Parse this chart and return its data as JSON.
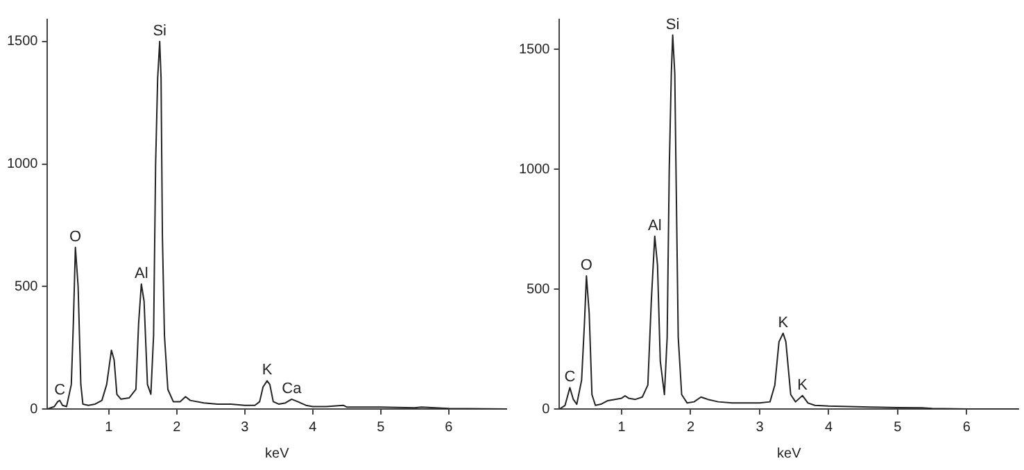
{
  "chart_data": [
    {
      "type": "line",
      "xlabel": "keV",
      "xlim": [
        0.1,
        6.85
      ],
      "ylim": [
        0,
        1590
      ],
      "xticks": [
        1,
        2,
        3,
        4,
        5,
        6
      ],
      "yticks": [
        0,
        500,
        1000,
        1500
      ],
      "grid": false,
      "marker": "none",
      "line_style": "solid",
      "series": [
        {
          "color": "#222222",
          "x": [
            0.1,
            0.2,
            0.25,
            0.28,
            0.32,
            0.38,
            0.45,
            0.48,
            0.51,
            0.55,
            0.59,
            0.62,
            0.7,
            0.8,
            0.9,
            0.97,
            1.04,
            1.08,
            1.12,
            1.18,
            1.3,
            1.4,
            1.44,
            1.48,
            1.52,
            1.57,
            1.62,
            1.66,
            1.69,
            1.72,
            1.75,
            1.77,
            1.79,
            1.82,
            1.87,
            1.95,
            2.05,
            2.13,
            2.2,
            2.4,
            2.6,
            2.8,
            3.0,
            3.15,
            3.22,
            3.27,
            3.33,
            3.37,
            3.42,
            3.5,
            3.6,
            3.69,
            3.78,
            3.9,
            4.0,
            4.2,
            4.45,
            4.5,
            5.0,
            5.5,
            5.6,
            6.0,
            6.85
          ],
          "values": [
            0,
            10,
            30,
            35,
            15,
            10,
            100,
            350,
            660,
            500,
            100,
            20,
            15,
            20,
            35,
            100,
            240,
            200,
            60,
            40,
            45,
            80,
            350,
            510,
            440,
            100,
            60,
            300,
            1000,
            1350,
            1500,
            1350,
            700,
            300,
            80,
            30,
            30,
            50,
            35,
            25,
            20,
            20,
            15,
            15,
            30,
            90,
            115,
            100,
            30,
            20,
            25,
            40,
            30,
            15,
            10,
            10,
            15,
            8,
            8,
            5,
            8,
            2,
            0
          ]
        }
      ],
      "annotations": [
        {
          "text": "C",
          "x": 0.28,
          "y": 35
        },
        {
          "text": "O",
          "x": 0.51,
          "y": 660
        },
        {
          "text": "Al",
          "x": 1.48,
          "y": 510
        },
        {
          "text": "Si",
          "x": 1.75,
          "y": 1500
        },
        {
          "text": "K",
          "x": 3.33,
          "y": 115
        },
        {
          "text": "Ca",
          "x": 3.69,
          "y": 40
        }
      ]
    },
    {
      "type": "line",
      "xlabel": "keV",
      "xlim": [
        0.1,
        6.75
      ],
      "ylim": [
        0,
        1625
      ],
      "xticks": [
        1,
        2,
        3,
        4,
        5,
        6
      ],
      "yticks": [
        0,
        500,
        1000,
        1500
      ],
      "grid": false,
      "marker": "none",
      "line_style": "solid",
      "series": [
        {
          "color": "#222222",
          "x": [
            0.1,
            0.18,
            0.25,
            0.3,
            0.35,
            0.42,
            0.46,
            0.49,
            0.53,
            0.57,
            0.62,
            0.7,
            0.8,
            0.9,
            1.0,
            1.05,
            1.1,
            1.2,
            1.3,
            1.38,
            1.43,
            1.48,
            1.52,
            1.56,
            1.62,
            1.66,
            1.69,
            1.72,
            1.74,
            1.77,
            1.79,
            1.82,
            1.87,
            1.95,
            2.05,
            2.15,
            2.25,
            2.4,
            2.6,
            2.8,
            3.0,
            3.15,
            3.22,
            3.28,
            3.34,
            3.38,
            3.45,
            3.52,
            3.62,
            3.7,
            3.8,
            4.0,
            4.3,
            4.6,
            5.0,
            5.35,
            5.5,
            6.0,
            6.75
          ],
          "values": [
            0,
            15,
            89,
            40,
            20,
            120,
            350,
            555,
            400,
            60,
            15,
            20,
            35,
            40,
            45,
            55,
            45,
            40,
            50,
            100,
            450,
            721,
            600,
            200,
            60,
            300,
            1000,
            1400,
            1560,
            1400,
            950,
            300,
            60,
            25,
            30,
            50,
            40,
            30,
            25,
            25,
            25,
            30,
            100,
            280,
            316,
            280,
            60,
            30,
            56,
            25,
            15,
            12,
            10,
            8,
            6,
            5,
            2,
            0,
            0
          ]
        }
      ],
      "annotations": [
        {
          "text": "C",
          "x": 0.25,
          "y": 89
        },
        {
          "text": "O",
          "x": 0.49,
          "y": 555
        },
        {
          "text": "Al",
          "x": 1.48,
          "y": 721
        },
        {
          "text": "Si",
          "x": 1.74,
          "y": 1560
        },
        {
          "text": "K",
          "x": 3.34,
          "y": 316
        },
        {
          "text": "K",
          "x": 3.62,
          "y": 56
        }
      ]
    }
  ]
}
